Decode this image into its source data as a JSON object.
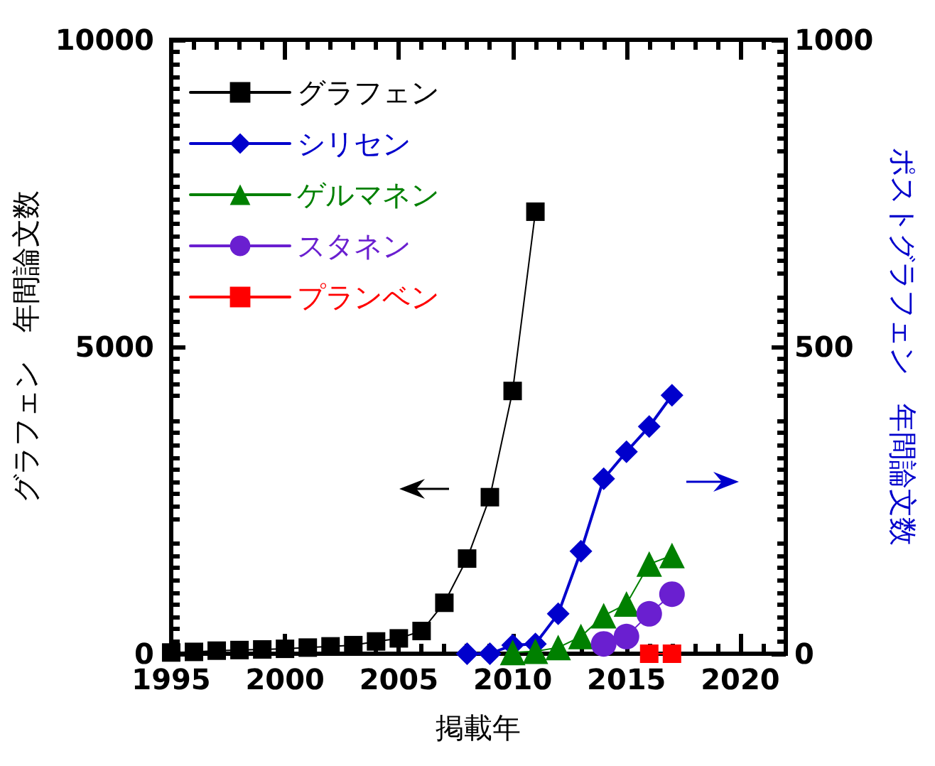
{
  "chart_data": {
    "type": "line",
    "xlabel": "掲載年",
    "ylabel": "グラフェン　年間論文数",
    "y2label": "ポストグラフェン　年間論文数",
    "x": [
      1995,
      1996,
      1997,
      1998,
      1999,
      2000,
      2001,
      2002,
      2003,
      2004,
      2005,
      2006,
      2007,
      2008,
      2009,
      2010,
      2011
    ],
    "series": [
      {
        "name": "グラフェン",
        "color": "#000000",
        "marker": "square",
        "values": [
          20,
          30,
          50,
          60,
          70,
          80,
          100,
          120,
          140,
          200,
          250,
          370,
          830,
          1550,
          2550,
          4280,
          7200
        ]
      },
      {
        "name": "シリセン",
        "color": "#0000cc",
        "marker": "diamond",
        "axis": "y2",
        "x": [
          2008,
          2009,
          2010,
          2011,
          2012,
          2013,
          2014,
          2015,
          2016,
          2017
        ],
        "values": [
          0,
          0,
          14,
          16,
          65,
          167,
          285,
          329,
          370,
          421
        ]
      },
      {
        "name": "ゲルマネン",
        "color": "#008000",
        "marker": "triangle",
        "axis": "y2",
        "x": [
          2010,
          2011,
          2012,
          2013,
          2014,
          2015,
          2016,
          2017
        ],
        "values": [
          2,
          4,
          10,
          28,
          62,
          81,
          146,
          160
        ]
      },
      {
        "name": "スタネン",
        "color": "#6a1fd0",
        "marker": "circle",
        "axis": "y2",
        "x": [
          2014,
          2015,
          2016,
          2017
        ],
        "values": [
          16,
          28,
          65,
          97
        ]
      },
      {
        "name": "プランベン",
        "color": "#ff0000",
        "marker": "square",
        "axis": "y2",
        "x": [
          2016,
          2017
        ],
        "values": [
          0,
          0
        ]
      }
    ],
    "xlim": [
      1995,
      2022
    ],
    "xticks": [
      1995,
      2000,
      2005,
      2010,
      2015,
      2020
    ],
    "ylim": [
      0,
      10000
    ],
    "yticks": [
      0,
      5000,
      10000
    ],
    "y2lim": [
      0,
      1000
    ],
    "y2ticks": [
      0,
      500,
      1000
    ],
    "legend": "top left",
    "grid": false
  }
}
